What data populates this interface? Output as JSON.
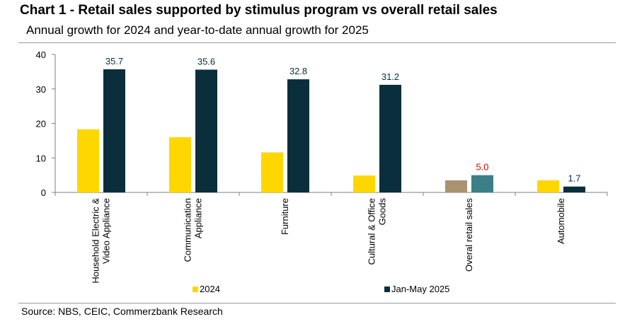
{
  "header": {
    "title": "Chart 1 - Retail sales supported by stimulus program vs overall retail sales",
    "subtitle": "Annual growth for 2024 and year-to-date annual growth for 2025"
  },
  "footer": {
    "source": "Source: NBS, CEIC, Commerzbank Research"
  },
  "chart_data": {
    "type": "bar",
    "title": "Chart 1 - Retail sales supported by stimulus program vs overall retail sales",
    "subtitle": "Annual growth for 2024 and year-to-date annual growth for 2025",
    "categories": [
      [
        "Household Electric &",
        "Video Appliance"
      ],
      [
        "Communication",
        "Appliance"
      ],
      [
        "Furniture"
      ],
      [
        "Cultural & Office",
        "Goods"
      ],
      [
        "Overal retail sales"
      ],
      [
        "Automobile"
      ]
    ],
    "series": [
      {
        "name": "2024",
        "color": "#ffd700",
        "values": [
          18.3,
          16.0,
          11.6,
          4.9,
          3.5,
          3.5
        ],
        "point_colors": [
          "#ffd700",
          "#ffd700",
          "#ffd700",
          "#ffd700",
          "#a89270",
          "#ffd700"
        ]
      },
      {
        "name": "Jan-May 2025",
        "color": "#0a2e3c",
        "values": [
          35.7,
          35.6,
          32.8,
          31.2,
          5.0,
          1.7
        ],
        "point_colors": [
          "#0a2e3c",
          "#0a2e3c",
          "#0a2e3c",
          "#0a2e3c",
          "#3c7f86",
          "#0a2e3c"
        ],
        "data_labels": [
          "35.7",
          "35.6",
          "32.8",
          "31.2",
          "5.0",
          "1.7"
        ],
        "data_label_colors": [
          "#0a2e3c",
          "#0a2e3c",
          "#0a2e3c",
          "#0a2e3c",
          "#e00000",
          "#0a2e3c"
        ]
      }
    ],
    "ylim": [
      0,
      40
    ],
    "yticks": [
      0,
      10,
      20,
      30,
      40
    ],
    "xlabel": "",
    "ylabel": "",
    "grid": false,
    "legend_position": "bottom"
  }
}
